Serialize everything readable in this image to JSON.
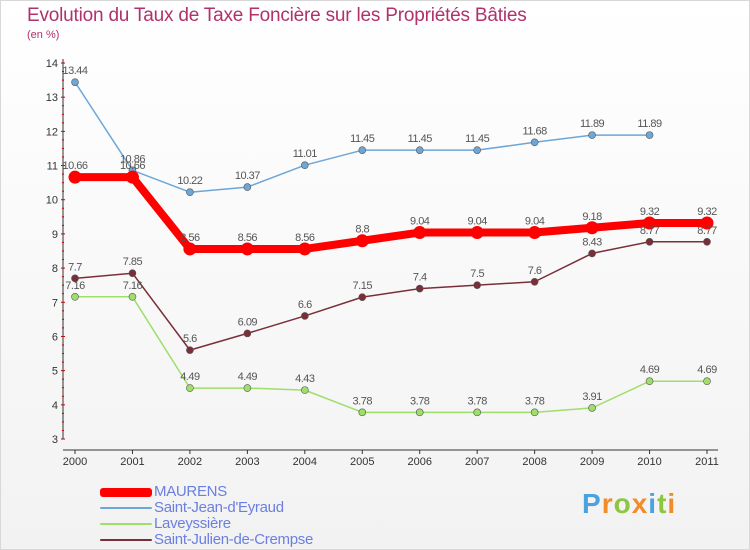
{
  "header": {
    "title": "Evolution du Taux de Taxe Foncière sur les Propriétés Bâties",
    "subtitle": "(en %)"
  },
  "logo": {
    "letters": [
      "P",
      "r",
      "o",
      "x",
      "i",
      "t",
      "i"
    ],
    "colors": [
      "#4aa3df",
      "#f28c28",
      "#8dc63f",
      "#f28c28",
      "#4aa3df",
      "#8dc63f",
      "#f28c28"
    ]
  },
  "chart_data": {
    "type": "line",
    "title": "Evolution du Taux de Taxe Foncière sur les Propriétés Bâties",
    "subtitle": "(en %)",
    "xlabel": "",
    "ylabel": "",
    "x": [
      "2000",
      "2001",
      "2002",
      "2003",
      "2004",
      "2005",
      "2006",
      "2007",
      "2008",
      "2009",
      "2010",
      "2011"
    ],
    "ylim": [
      3,
      14
    ],
    "yticks": [
      "3",
      "4",
      "5",
      "6",
      "7",
      "8",
      "9",
      "10",
      "11",
      "12",
      "13",
      "14"
    ],
    "grid": false,
    "legend_position": "bottom-left",
    "series": [
      {
        "name": "MAURENS",
        "color": "#ff0000",
        "values": [
          10.66,
          10.66,
          8.56,
          8.56,
          8.56,
          8.8,
          9.04,
          9.04,
          9.04,
          9.18,
          9.32,
          9.32
        ],
        "labels": [
          "10.66",
          "10.66",
          "8.56",
          "8.56",
          "8.56",
          "8.8",
          "9.04",
          "9.04",
          "9.04",
          "9.18",
          "9.32",
          "9.32"
        ]
      },
      {
        "name": "Saint-Jean-d'Eyraud",
        "color": "#6ea6d6",
        "values": [
          13.44,
          10.86,
          10.22,
          10.37,
          11.01,
          11.45,
          11.45,
          11.45,
          11.68,
          11.89,
          11.89,
          null
        ],
        "labels": [
          "13.44",
          "10.86",
          "10.22",
          "10.37",
          "11.01",
          "11.45",
          "11.45",
          "11.45",
          "11.68",
          "11.89",
          "11.89",
          null
        ]
      },
      {
        "name": "Laveyssière",
        "color": "#9fde6a",
        "values": [
          7.16,
          7.16,
          4.49,
          4.49,
          4.43,
          3.78,
          3.78,
          3.78,
          3.78,
          3.91,
          4.69,
          4.69
        ],
        "labels": [
          "7.16",
          "7.16",
          "4.49",
          "4.49",
          "4.43",
          "3.78",
          "3.78",
          "3.78",
          "3.78",
          "3.91",
          "4.69",
          "4.69"
        ]
      },
      {
        "name": "Saint-Julien-de-Crempse",
        "color": "#7a2f38",
        "values": [
          7.7,
          7.85,
          5.6,
          6.09,
          6.6,
          7.15,
          7.4,
          7.5,
          7.6,
          8.43,
          8.77,
          8.77
        ],
        "labels": [
          "7.7",
          "7.85",
          "5.6",
          "6.09",
          "6.6",
          "7.15",
          "7.4",
          "7.5",
          "7.6",
          "8.43",
          "8.77",
          "8.77"
        ]
      }
    ]
  }
}
